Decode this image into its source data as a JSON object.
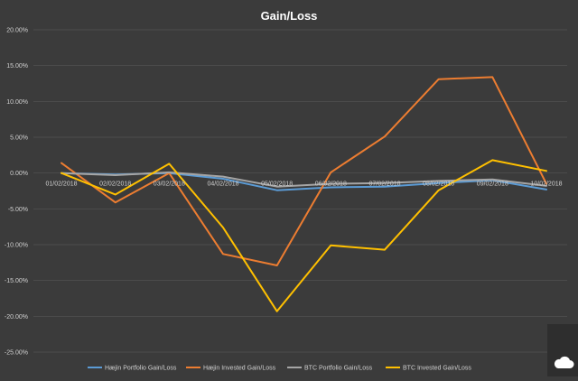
{
  "chart_data": {
    "type": "line",
    "title": "Gain/Loss",
    "xlabel": "",
    "ylabel": "",
    "categories": [
      "01/02/2018",
      "02/02/2018",
      "03/02/2018",
      "04/02/2018",
      "05/02/2018",
      "06/02/2018",
      "07/02/2018",
      "08/02/2018",
      "09/02/2018",
      "10/02/2018"
    ],
    "y_ticks": [
      "20.00%",
      "15.00%",
      "10.00%",
      "5.00%",
      "0.00%",
      "-5.00%",
      "-10.00%",
      "-15.00%",
      "-20.00%",
      "-25.00%"
    ],
    "ylim": [
      -25,
      20
    ],
    "grid": true,
    "legend_position": "bottom",
    "series": [
      {
        "name": "Hæjin Portfolio Gain/Loss",
        "color": "#5b9bd5",
        "values": [
          0.0,
          -0.2,
          0.0,
          -0.8,
          -2.4,
          -2.0,
          -1.9,
          -1.4,
          -1.0,
          -2.3
        ]
      },
      {
        "name": "Hæjin Invested Gain/Loss",
        "color": "#ed7d31",
        "values": [
          1.4,
          -4.1,
          0.0,
          -11.3,
          -12.9,
          0.1,
          5.1,
          13.1,
          13.4,
          -1.5
        ]
      },
      {
        "name": "BTC Portfolio Gain/Loss",
        "color": "#a5a5a5",
        "values": [
          0.0,
          -0.3,
          0.1,
          -0.5,
          -1.9,
          -1.5,
          -1.4,
          -1.1,
          -0.9,
          -1.8
        ]
      },
      {
        "name": "BTC Invested Gain/Loss",
        "color": "#ffc000",
        "values": [
          0.0,
          -3.0,
          1.3,
          -7.6,
          -19.3,
          -10.1,
          -10.7,
          -2.4,
          1.8,
          0.3
        ]
      }
    ]
  },
  "corner_logo": {
    "icon": "cloud-icon"
  }
}
